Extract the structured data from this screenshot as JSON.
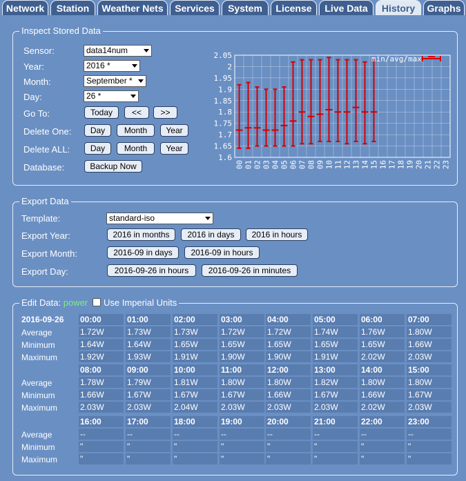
{
  "tabs": [
    "Network",
    "Station",
    "Weather Nets",
    "Services",
    "System",
    "License",
    "Live Data",
    "History",
    "Graphs"
  ],
  "inspect": {
    "legend": "Inspect Stored Data",
    "sensor_label": "Sensor:",
    "sensor_value": "data14num",
    "year_label": "Year:",
    "year_value": "2016 *",
    "month_label": "Month:",
    "month_value": "September *",
    "day_label": "Day:",
    "day_value": "26 *",
    "goto_label": "Go To:",
    "today": "Today",
    "prev": "<<",
    "next": ">>",
    "delete_one_label": "Delete One:",
    "delete_all_label": "Delete ALL:",
    "day_btn": "Day",
    "month_btn": "Month",
    "year_btn": "Year",
    "database_label": "Database:",
    "backup": "Backup Now"
  },
  "export": {
    "legend": "Export Data",
    "template_label": "Template:",
    "template_value": "standard-iso",
    "year_label": "Export Year:",
    "year_buttons": [
      "2016 in months",
      "2016 in days",
      "2016 in hours"
    ],
    "month_label": "Export Month:",
    "month_buttons": [
      "2016-09 in days",
      "2016-09 in hours"
    ],
    "day_label": "Export Day:",
    "day_buttons": [
      "2016-09-26 in hours",
      "2016-09-26 in minutes"
    ]
  },
  "edit": {
    "legend": "Edit Data:",
    "legend_value": "power",
    "imperial_label": "Use Imperial Units",
    "date": "2016-09-26",
    "row_labels": [
      "Average",
      "Minimum",
      "Maximum"
    ],
    "hours": [
      "00:00",
      "01:00",
      "02:00",
      "03:00",
      "04:00",
      "05:00",
      "06:00",
      "07:00",
      "08:00",
      "09:00",
      "10:00",
      "11:00",
      "12:00",
      "13:00",
      "14:00",
      "15:00",
      "16:00",
      "17:00",
      "18:00",
      "19:00",
      "20:00",
      "21:00",
      "22:00",
      "23:00"
    ],
    "average": [
      "1.72W",
      "1.73W",
      "1.73W",
      "1.72W",
      "1.72W",
      "1.74W",
      "1.76W",
      "1.80W",
      "1.78W",
      "1.79W",
      "1.81W",
      "1.80W",
      "1.80W",
      "1.82W",
      "1.80W",
      "1.80W",
      "--",
      "--",
      "--",
      "--",
      "--",
      "--",
      "--",
      "--"
    ],
    "minimum": [
      "1.64W",
      "1.64W",
      "1.65W",
      "1.65W",
      "1.65W",
      "1.65W",
      "1.65W",
      "1.66W",
      "1.66W",
      "1.67W",
      "1.67W",
      "1.67W",
      "1.66W",
      "1.67W",
      "1.66W",
      "1.67W",
      "\"",
      "\"",
      "\"",
      "\"",
      "\"",
      "\"",
      "\"",
      "\""
    ],
    "maximum": [
      "1.92W",
      "1.93W",
      "1.91W",
      "1.90W",
      "1.90W",
      "1.91W",
      "2.02W",
      "2.03W",
      "2.03W",
      "2.03W",
      "2.04W",
      "2.03W",
      "2.03W",
      "2.03W",
      "2.02W",
      "2.03W",
      "\"",
      "\"",
      "\"",
      "\"",
      "\"",
      "\"",
      "\"",
      "\""
    ]
  },
  "chart_data": {
    "type": "errorbar",
    "legend": "min/avg/max",
    "legend_placement": "top-right",
    "color": "#d40000",
    "ylim": [
      1.6,
      2.05
    ],
    "yticks": [
      "2.05",
      "2",
      "1.95",
      "1.9",
      "1.85",
      "1.8",
      "1.75",
      "1.7",
      "1.65",
      "1.6"
    ],
    "xticks": [
      "00",
      "01",
      "02",
      "03",
      "04",
      "05",
      "06",
      "07",
      "08",
      "09",
      "10",
      "11",
      "12",
      "13",
      "14",
      "15",
      "16",
      "17",
      "18",
      "19",
      "20",
      "21",
      "22",
      "23"
    ],
    "avg": [
      1.72,
      1.73,
      1.73,
      1.72,
      1.72,
      1.74,
      1.76,
      1.8,
      1.78,
      1.79,
      1.81,
      1.8,
      1.8,
      1.82,
      1.8,
      1.8
    ],
    "min": [
      1.64,
      1.64,
      1.65,
      1.65,
      1.65,
      1.65,
      1.65,
      1.66,
      1.66,
      1.67,
      1.67,
      1.67,
      1.66,
      1.67,
      1.66,
      1.67
    ],
    "max": [
      1.92,
      1.93,
      1.91,
      1.9,
      1.9,
      1.91,
      2.02,
      2.03,
      2.03,
      2.03,
      2.04,
      2.03,
      2.03,
      2.03,
      2.02,
      2.03
    ],
    "grid": true
  }
}
